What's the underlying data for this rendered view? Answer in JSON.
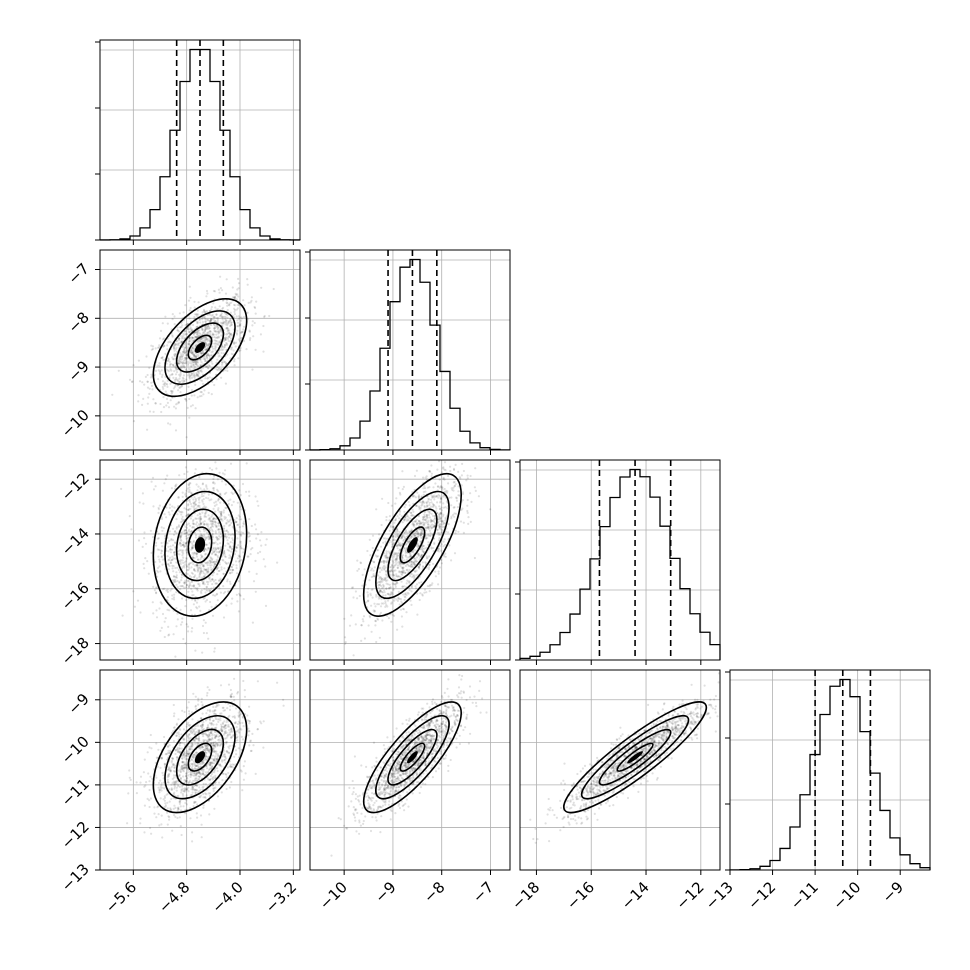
{
  "chart_data": {
    "type": "corner",
    "grid": true,
    "params": [
      {
        "mean": -4.6,
        "sd": 0.35,
        "range": [
          -6.1,
          -3.1
        ],
        "ticks": [
          -5.6,
          -4.8,
          -4.0,
          -3.2
        ],
        "tick_labels": [
          "−5.6",
          "−4.8",
          "−4.0",
          "−3.2"
        ],
        "quantiles": [
          -4.95,
          -4.6,
          -4.25
        ]
      },
      {
        "mean": -8.6,
        "sd": 0.5,
        "range": [
          -10.7,
          -6.6
        ],
        "ticks": [
          -10,
          -9,
          -8,
          -7
        ],
        "tick_labels": [
          "−10",
          "−9",
          "−8",
          "−7"
        ],
        "quantiles": [
          -9.1,
          -8.6,
          -8.1
        ]
      },
      {
        "mean": -14.4,
        "sd": 1.3,
        "range": [
          -18.6,
          -11.3
        ],
        "ticks": [
          -18,
          -16,
          -14,
          -12
        ],
        "tick_labels": [
          "−18",
          "−16",
          "−14",
          "−12"
        ],
        "quantiles": [
          -15.7,
          -14.4,
          -13.1
        ]
      },
      {
        "mean": -10.35,
        "sd": 0.65,
        "range": [
          -13,
          -8.3
        ],
        "ticks": [
          -13,
          -12,
          -11,
          -10,
          -9
        ],
        "tick_labels": [
          "−13",
          "−12",
          "−11",
          "−10",
          "−9"
        ],
        "quantiles": [
          -11.0,
          -10.35,
          -9.7
        ]
      }
    ],
    "correlations": [
      {
        "i": 1,
        "j": 0,
        "rho": 0.55
      },
      {
        "i": 2,
        "j": 0,
        "rho": 0.15
      },
      {
        "i": 2,
        "j": 1,
        "rho": 0.7
      },
      {
        "i": 3,
        "j": 0,
        "rho": 0.5
      },
      {
        "i": 3,
        "j": 1,
        "rho": 0.8
      },
      {
        "i": 3,
        "j": 2,
        "rho": 0.9
      }
    ],
    "contour_levels_sigma": [
      0.5,
      1.0,
      1.5,
      2.0
    ]
  }
}
